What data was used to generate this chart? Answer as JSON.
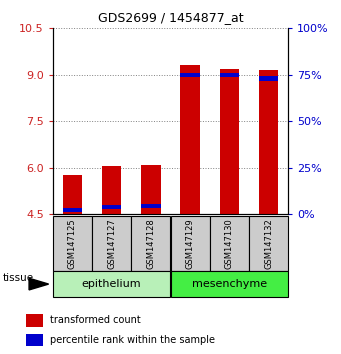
{
  "title": "GDS2699 / 1454877_at",
  "samples": [
    "GSM147125",
    "GSM147127",
    "GSM147128",
    "GSM147129",
    "GSM147130",
    "GSM147132"
  ],
  "transformed_counts": [
    5.75,
    6.05,
    6.1,
    9.3,
    9.2,
    9.15
  ],
  "percentile_ranks": [
    4.65,
    4.72,
    4.75,
    9.0,
    9.0,
    8.88
  ],
  "ymin": 4.5,
  "ymax": 10.5,
  "yticks_left": [
    4.5,
    6.0,
    7.5,
    9.0,
    10.5
  ],
  "yticks_right_vals": [
    0,
    25,
    50,
    75,
    100
  ],
  "bar_color": "#cc0000",
  "percentile_color": "#0000cc",
  "bar_width": 0.5,
  "tissue_label": "tissue",
  "legend_items": [
    {
      "label": "transformed count",
      "color": "#cc0000"
    },
    {
      "label": "percentile rank within the sample",
      "color": "#0000cc"
    }
  ],
  "left_axis_color": "#cc2222",
  "right_axis_color": "#0000cc",
  "epithelium_color": "#b8f0b8",
  "mesenchyme_color": "#44ee44",
  "sample_box_color": "#cccccc",
  "group_border_color": "#000000"
}
